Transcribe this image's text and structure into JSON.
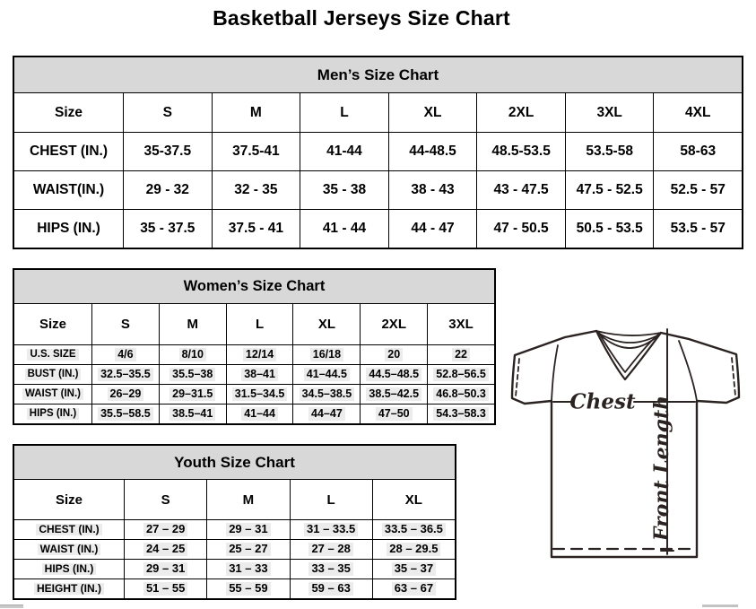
{
  "title": "Basketball Jerseys Size Chart",
  "tables": {
    "men": {
      "caption": "Men’s Size Chart",
      "columns": [
        "Size",
        "S",
        "M",
        "L",
        "XL",
        "2XL",
        "3XL",
        "4XL"
      ],
      "rows": [
        {
          "label": "CHEST (IN.)",
          "values": [
            "35-37.5",
            "37.5-41",
            "41-44",
            "44-48.5",
            "48.5-53.5",
            "53.5-58",
            "58-63"
          ]
        },
        {
          "label": "WAIST(IN.)",
          "values": [
            "29 - 32",
            "32 - 35",
            "35 - 38",
            "38 - 43",
            "43 - 47.5",
            "47.5 - 52.5",
            "52.5 - 57"
          ]
        },
        {
          "label": "HIPS (IN.)",
          "values": [
            "35 - 37.5",
            "37.5 - 41",
            "41 - 44",
            "44 - 47",
            "47 - 50.5",
            "50.5 - 53.5",
            "53.5 - 57"
          ]
        }
      ]
    },
    "women": {
      "caption": "Women’s Size Chart",
      "columns": [
        "Size",
        "S",
        "M",
        "L",
        "XL",
        "2XL",
        "3XL"
      ],
      "rows": [
        {
          "label": "U.S. SIZE",
          "values": [
            "4/6",
            "8/10",
            "12/14",
            "16/18",
            "20",
            "22"
          ]
        },
        {
          "label": "BUST (IN.)",
          "values": [
            "32.5–35.5",
            "35.5–38",
            "38–41",
            "41–44.5",
            "44.5–48.5",
            "52.8–56.5"
          ]
        },
        {
          "label": "WAIST (IN.)",
          "values": [
            "26–29",
            "29–31.5",
            "31.5–34.5",
            "34.5–38.5",
            "38.5–42.5",
            "46.8–50.3"
          ]
        },
        {
          "label": "HIPS (IN.)",
          "values": [
            "35.5–58.5",
            "38.5–41",
            "41–44",
            "44–47",
            "47–50",
            "54.3–58.3"
          ]
        }
      ]
    },
    "youth": {
      "caption": "Youth Size Chart",
      "columns": [
        "Size",
        "S",
        "M",
        "L",
        "XL"
      ],
      "rows": [
        {
          "label": "CHEST (IN.)",
          "values": [
            "27 – 29",
            "29 – 31",
            "31 – 33.5",
            "33.5 – 36.5"
          ]
        },
        {
          "label": "WAIST (IN.)",
          "values": [
            "24 – 25",
            "25 – 27",
            "27 – 28",
            "28 – 29.5"
          ]
        },
        {
          "label": "HIPS (IN.)",
          "values": [
            "29 – 31",
            "31 – 33",
            "33 – 35",
            "35 – 37"
          ]
        },
        {
          "label": "HEIGHT (IN.)",
          "values": [
            "51 – 55",
            "55 – 59",
            "59 – 63",
            "63 – 67"
          ]
        }
      ]
    }
  },
  "diagram": {
    "chest_label": "Chest",
    "front_length_label": "Front Length"
  },
  "colors": {
    "table_header_bg": "#d8d8d8",
    "table_border": "#000000",
    "diagram_ink": "#2b2321",
    "highlight_bg": "#ececec"
  }
}
